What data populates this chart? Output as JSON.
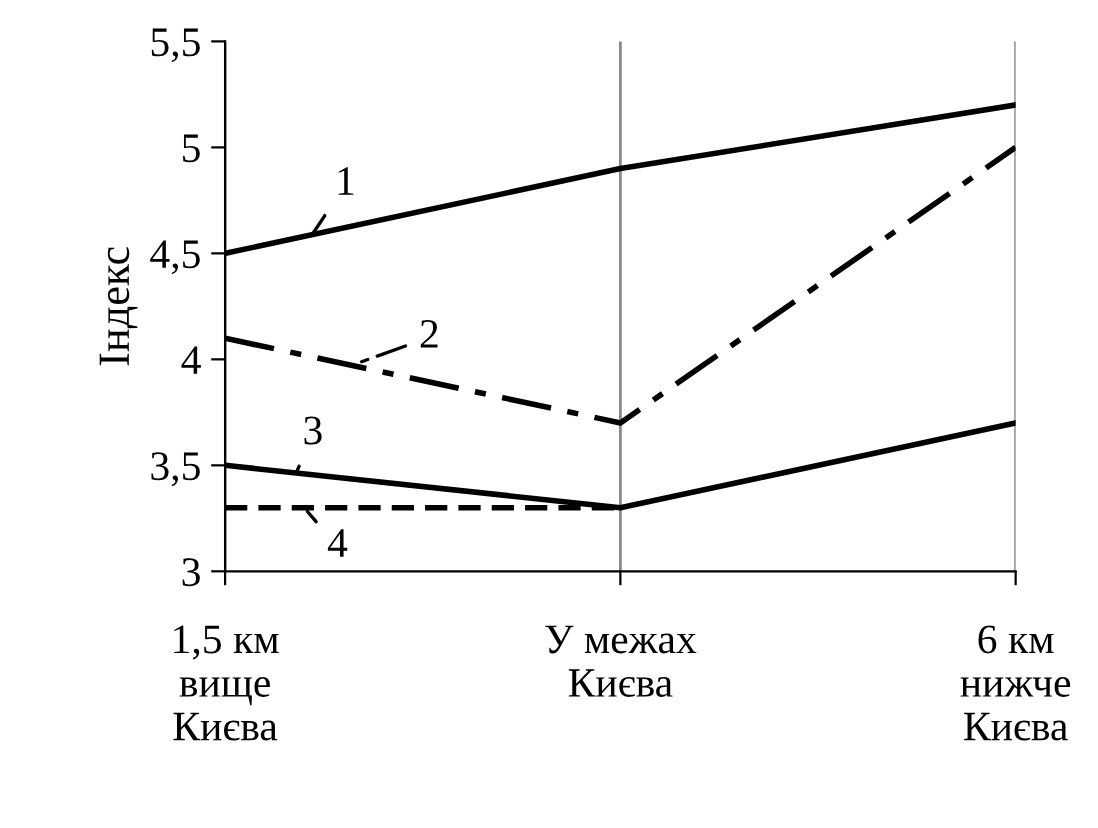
{
  "chart_data": {
    "type": "line",
    "ylabel": "Індекс",
    "categories": [
      "1,5 км\nвище\nКиєва",
      "У межах\nКиєва",
      "6 км\nнижче\nКиєва"
    ],
    "ylim": [
      3,
      5.5
    ],
    "yticks": [
      3,
      {
        "value": 3.5,
        "label": "3,5"
      },
      4,
      {
        "value": 4.5,
        "label": "4,5"
      },
      5,
      {
        "value": 5.5,
        "label": "5,5"
      }
    ],
    "grid": "x",
    "legend": "left",
    "marker": "none",
    "series": [
      {
        "name": "1",
        "color": "#000000",
        "line_style": "solid",
        "values": [
          4.5,
          4.9,
          5.2
        ]
      },
      {
        "name": "2",
        "color": "#000000",
        "line_style": "dashdot",
        "values": [
          4.1,
          3.7,
          5.0
        ]
      },
      {
        "name": "3",
        "color": "#000000",
        "line_style": "solid",
        "values": [
          3.5,
          3.3,
          3.7
        ]
      },
      {
        "name": "4",
        "color": "#000000",
        "line_style": "dashed",
        "values": [
          3.3,
          3.3,
          null
        ]
      }
    ]
  }
}
